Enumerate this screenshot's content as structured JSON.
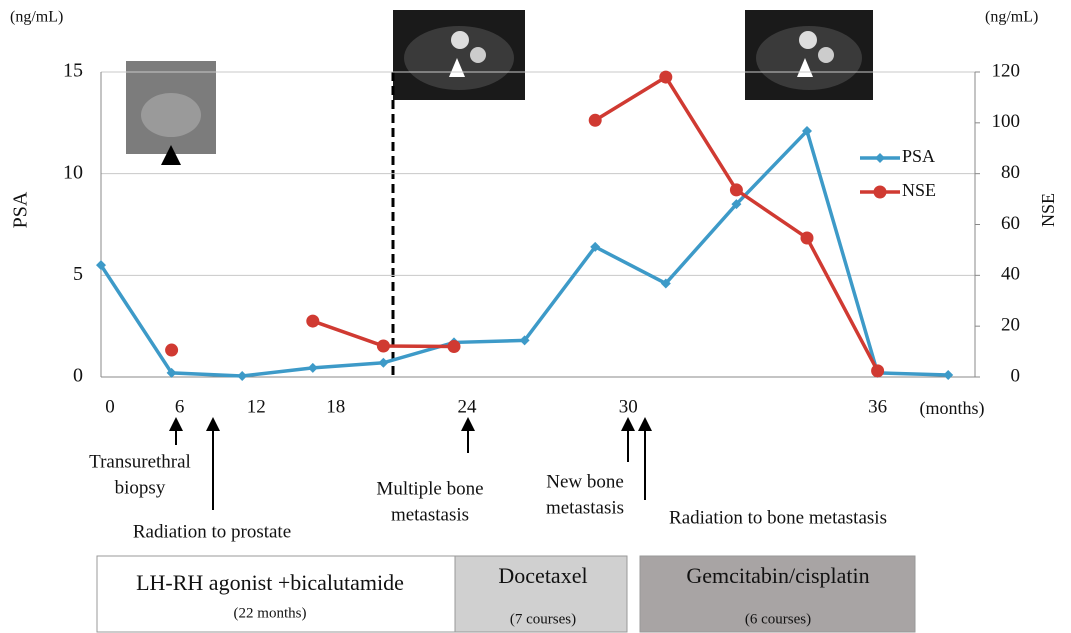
{
  "chart_data": {
    "type": "line",
    "y_unit": "(ng/mL)",
    "y2_unit": "(ng/mL)",
    "ylabel": "PSA",
    "y2label": "NSE",
    "xlabel": "(months)",
    "categories": [
      "0",
      "6",
      "12",
      "18",
      null,
      "24",
      null,
      "30",
      null,
      null,
      null,
      "36",
      null
    ],
    "ylim": [
      0,
      15
    ],
    "yticks": [
      0,
      5,
      10,
      15
    ],
    "y2lim": [
      0,
      120
    ],
    "y2ticks": [
      0,
      20,
      40,
      60,
      80,
      100,
      120
    ],
    "grid": true,
    "legend": "right",
    "series": [
      {
        "name": "PSA",
        "color": "#3d9ac8",
        "values": [
          5.5,
          0.2,
          0.05,
          0.45,
          0.7,
          1.7,
          1.8,
          6.4,
          4.6,
          8.5,
          12.1,
          0.2,
          0.1
        ]
      },
      {
        "name": "NSE",
        "color": "#d03a32",
        "axis": "y2",
        "values": [
          null,
          10.6,
          null,
          22,
          12.2,
          12,
          null,
          101,
          118,
          73.6,
          54.7,
          2.4,
          null
        ]
      }
    ],
    "annotations": [
      {
        "lines": [
          "Transurethral",
          "biopsy"
        ]
      },
      {
        "lines": [
          "Radiation to prostate"
        ]
      },
      {
        "lines": [
          "Multiple bone",
          "metastasis"
        ]
      },
      {
        "lines": [
          "New bone",
          "metastasis"
        ]
      },
      {
        "lines": [
          "Radiation to bone metastasis"
        ]
      }
    ],
    "treatments": [
      {
        "name": "LH-RH agonist +bicalutamide",
        "detail": "(22 months)"
      },
      {
        "name": "Docetaxel",
        "detail": "(7 courses)"
      },
      {
        "name": "Gemcitabin/cisplatin",
        "detail": "(6 courses)"
      }
    ]
  }
}
